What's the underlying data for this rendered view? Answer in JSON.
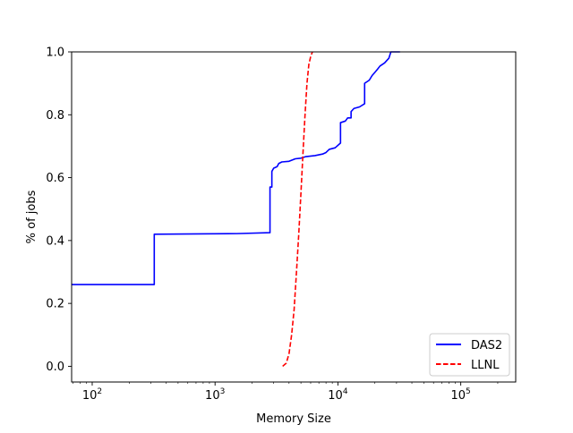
{
  "chart_data": {
    "type": "line",
    "xlabel": "Memory Size",
    "ylabel": "% of jobs",
    "x_scale": "log",
    "xlim": [
      68,
      280000
    ],
    "ylim": [
      -0.05,
      1.0
    ],
    "x_ticks": [
      {
        "value": 100,
        "base": "10",
        "exp": "2"
      },
      {
        "value": 1000,
        "base": "10",
        "exp": "3"
      },
      {
        "value": 10000,
        "base": "10",
        "exp": "4"
      },
      {
        "value": 100000,
        "base": "10",
        "exp": "5"
      }
    ],
    "y_ticks": [
      {
        "value": 0.0,
        "label": "0.0"
      },
      {
        "value": 0.2,
        "label": "0.2"
      },
      {
        "value": 0.4,
        "label": "0.4"
      },
      {
        "value": 0.6,
        "label": "0.6"
      },
      {
        "value": 0.8,
        "label": "0.8"
      },
      {
        "value": 1.0,
        "label": "1.0"
      }
    ],
    "grid": false,
    "legend_position": "bottom-right",
    "series": [
      {
        "name": "DAS2",
        "color": "#0000ff",
        "style": "solid",
        "points": [
          [
            68,
            0.26
          ],
          [
            320,
            0.26
          ],
          [
            320,
            0.42
          ],
          [
            1500,
            0.422
          ],
          [
            2800,
            0.425
          ],
          [
            2800,
            0.57
          ],
          [
            2900,
            0.57
          ],
          [
            2900,
            0.62
          ],
          [
            3000,
            0.63
          ],
          [
            3200,
            0.635
          ],
          [
            3300,
            0.645
          ],
          [
            3500,
            0.65
          ],
          [
            4000,
            0.652
          ],
          [
            4500,
            0.66
          ],
          [
            5000,
            0.662
          ],
          [
            5500,
            0.667
          ],
          [
            6500,
            0.67
          ],
          [
            7500,
            0.675
          ],
          [
            8000,
            0.68
          ],
          [
            8500,
            0.69
          ],
          [
            9500,
            0.695
          ],
          [
            10500,
            0.71
          ],
          [
            10500,
            0.775
          ],
          [
            11500,
            0.78
          ],
          [
            12000,
            0.79
          ],
          [
            12800,
            0.79
          ],
          [
            12800,
            0.81
          ],
          [
            13500,
            0.82
          ],
          [
            15000,
            0.825
          ],
          [
            16500,
            0.835
          ],
          [
            16500,
            0.9
          ],
          [
            18000,
            0.91
          ],
          [
            19000,
            0.925
          ],
          [
            20000,
            0.935
          ],
          [
            21000,
            0.945
          ],
          [
            22000,
            0.955
          ],
          [
            24000,
            0.965
          ],
          [
            26000,
            0.98
          ],
          [
            27000,
            1.0
          ],
          [
            32000,
            1.0
          ]
        ]
      },
      {
        "name": "LLNL",
        "color": "#ff0000",
        "style": "dashed",
        "points": [
          [
            3550,
            0.0
          ],
          [
            3800,
            0.01
          ],
          [
            4000,
            0.04
          ],
          [
            4200,
            0.1
          ],
          [
            4400,
            0.18
          ],
          [
            4600,
            0.3
          ],
          [
            4800,
            0.42
          ],
          [
            5000,
            0.55
          ],
          [
            5200,
            0.68
          ],
          [
            5400,
            0.8
          ],
          [
            5600,
            0.9
          ],
          [
            5800,
            0.96
          ],
          [
            6000,
            0.985
          ],
          [
            6200,
            1.0
          ]
        ]
      }
    ]
  }
}
